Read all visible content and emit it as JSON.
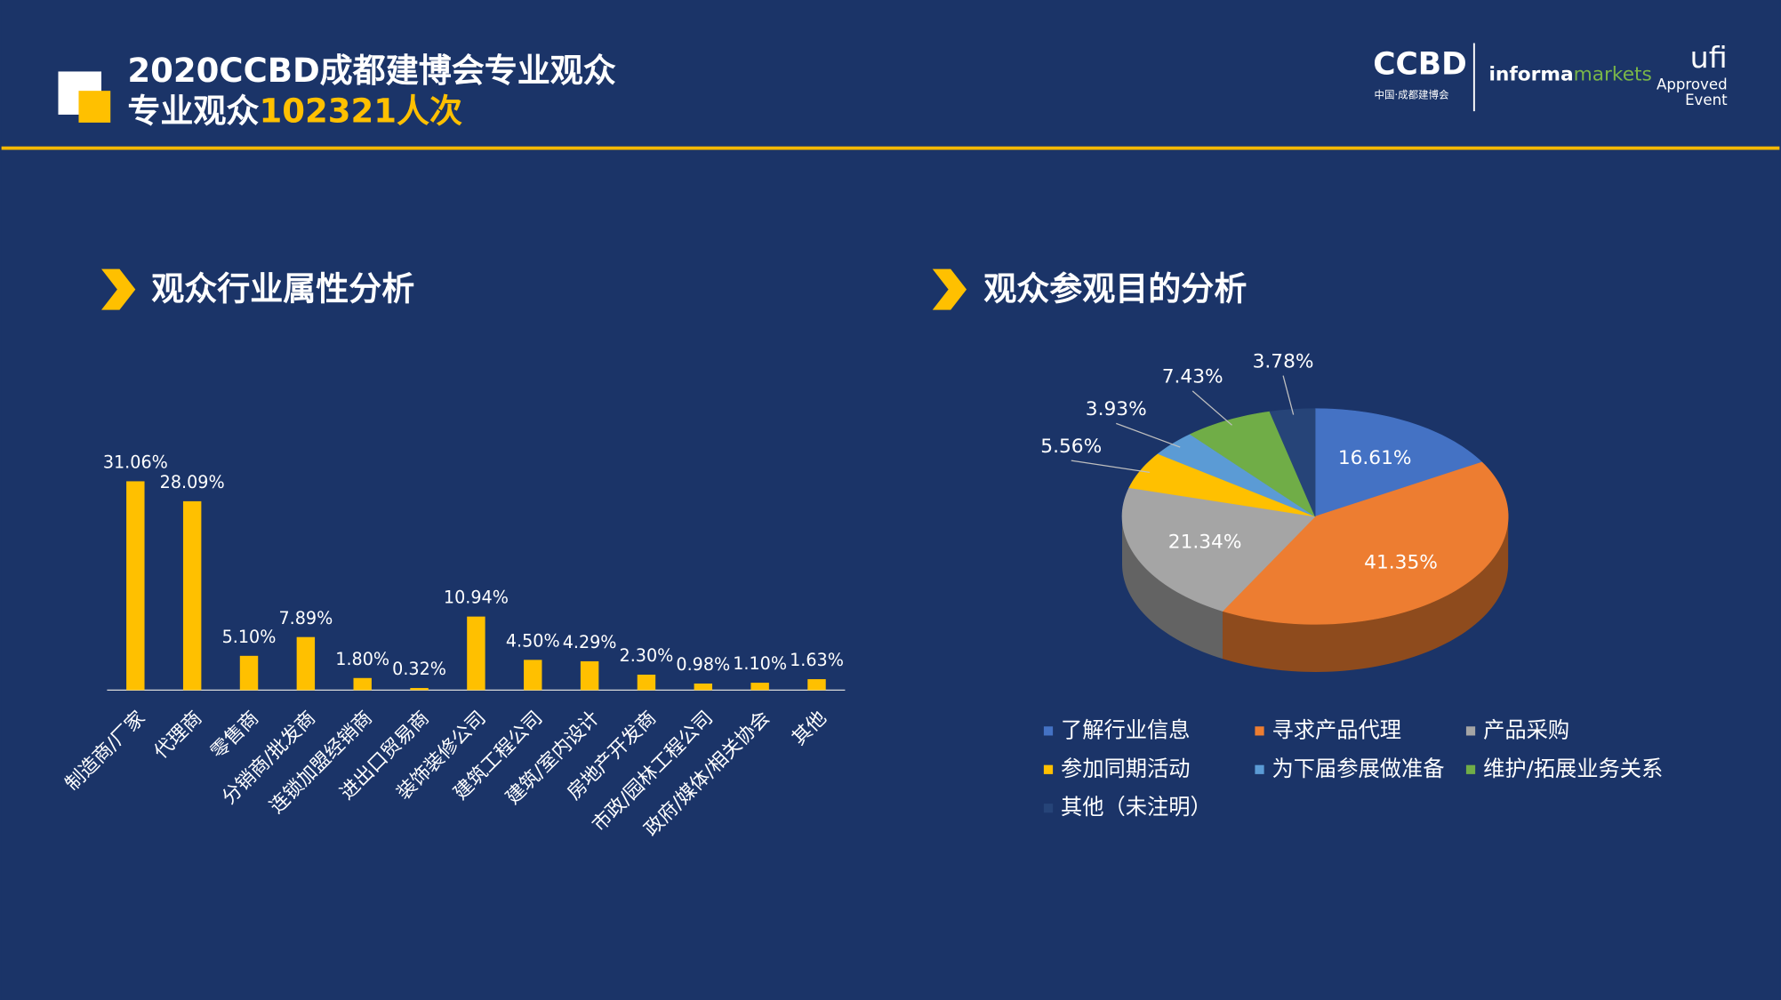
{
  "header": {
    "title": "2020CCBD成都建博会专业观众",
    "subtitle_prefix": "专业观众",
    "subtitle_highlight": "102321人次"
  },
  "logo": {
    "ccbd": "CCBD",
    "ccbd_sub": "中国·成都建博会",
    "informa": "informa",
    "markets": "markets",
    "ufi": "ufi",
    "approved": "Approved",
    "event": "Event"
  },
  "chart_data": [
    {
      "type": "bar",
      "title": "观众行业属性分析",
      "color": "#ffc000",
      "categories": [
        "制造商/厂家",
        "代理商",
        "零售商",
        "分销商/批发商",
        "连锁加盟经销商",
        "进出口贸易商",
        "装饰装修公司",
        "建筑工程公司",
        "建筑/室内设计",
        "房地产开发商",
        "市政/园林工程公司",
        "政府/媒体/相关协会",
        "其他"
      ],
      "values": [
        31.06,
        28.09,
        5.1,
        7.89,
        1.8,
        0.32,
        10.94,
        4.5,
        4.29,
        2.3,
        0.98,
        1.1,
        1.63
      ],
      "value_labels": [
        "31.06%",
        "28.09%",
        "5.10%",
        "7.89%",
        "1.80%",
        "0.32%",
        "10.94%",
        "4.50%",
        "4.29%",
        "2.30%",
        "0.98%",
        "1.10%",
        "1.63%"
      ]
    },
    {
      "type": "pie",
      "title": "观众参观目的分析",
      "categories": [
        "了解行业信息",
        "寻求产品代理",
        "产品采购",
        "参加同期活动",
        "为下届参展做准备",
        "维护/拓展业务关系",
        "其他（未注明）"
      ],
      "values": [
        16.61,
        41.35,
        21.34,
        5.56,
        3.93,
        7.43,
        3.78
      ],
      "value_labels": [
        "16.61%",
        "41.35%",
        "21.34%",
        "5.56%",
        "3.93%",
        "7.43%",
        "3.78%"
      ],
      "colors": [
        "#4472c4",
        "#ed7d31",
        "#a5a5a5",
        "#ffc000",
        "#5b9bd5",
        "#70ad47",
        "#264478"
      ]
    }
  ]
}
